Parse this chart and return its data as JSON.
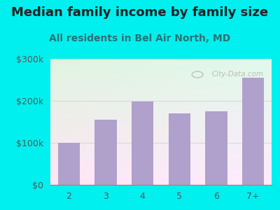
{
  "title": "Median family income by family size",
  "subtitle": "All residents in Bel Air North, MD",
  "categories": [
    "2",
    "3",
    "4",
    "5",
    "6",
    "7+"
  ],
  "values": [
    100000,
    155000,
    198000,
    170000,
    175000,
    255000
  ],
  "bar_color": "#b0a0cc",
  "background_color": "#00efef",
  "ylim": [
    0,
    300000
  ],
  "yticks": [
    0,
    100000,
    200000,
    300000
  ],
  "ytick_labels": [
    "$0",
    "$100k",
    "$200k",
    "$300k"
  ],
  "title_fontsize": 13,
  "subtitle_fontsize": 10,
  "tick_fontsize": 9,
  "title_color": "#222222",
  "subtitle_color": "#2e7070",
  "tick_color": "#555555",
  "watermark_text": "City-Data.com"
}
